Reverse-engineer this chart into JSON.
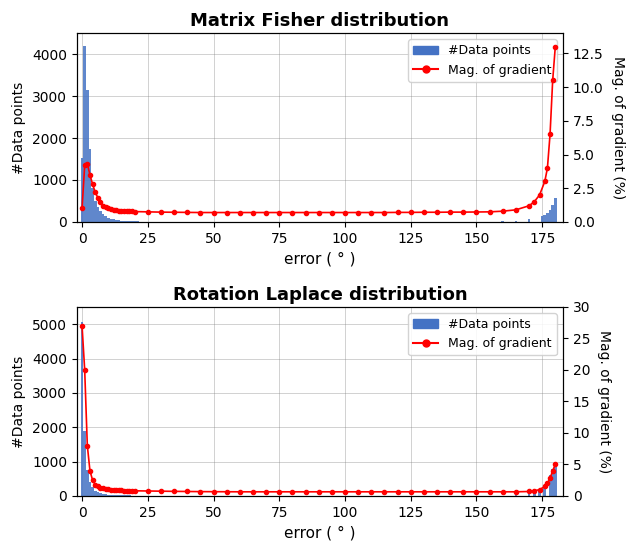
{
  "title1": "Matrix Fisher distribution",
  "title2": "Rotation Laplace distribution",
  "xlabel": "error ( ° )",
  "ylabel_left": "#Data points",
  "ylabel_right": "Mag. of gradient (%)",
  "bar_color": "#4472c4",
  "line_color": "#ff0000",
  "grid": true,
  "mf_bar_centers": [
    0,
    1,
    2,
    3,
    4,
    5,
    6,
    7,
    8,
    9,
    10,
    11,
    12,
    13,
    14,
    15,
    16,
    17,
    18,
    19,
    20,
    21,
    22,
    23,
    24,
    25,
    26,
    27,
    28,
    29,
    30,
    35,
    40,
    45,
    50,
    55,
    60,
    65,
    70,
    75,
    80,
    85,
    90,
    95,
    100,
    105,
    110,
    115,
    120,
    125,
    130,
    135,
    140,
    145,
    150,
    155,
    160,
    165,
    170,
    175,
    176,
    177,
    178,
    179,
    180
  ],
  "mf_bar_heights": [
    1520,
    4200,
    3150,
    1750,
    800,
    500,
    350,
    250,
    180,
    140,
    100,
    80,
    65,
    55,
    45,
    35,
    30,
    25,
    20,
    18,
    15,
    12,
    10,
    10,
    8,
    8,
    7,
    6,
    5,
    5,
    10,
    8,
    5,
    5,
    4,
    4,
    3,
    3,
    2,
    2,
    2,
    2,
    2,
    2,
    2,
    2,
    2,
    2,
    2,
    2,
    2,
    2,
    2,
    3,
    5,
    8,
    15,
    30,
    60,
    150,
    170,
    220,
    290,
    400,
    580
  ],
  "mf_grad_x": [
    0,
    1,
    2,
    3,
    4,
    5,
    6,
    7,
    8,
    9,
    10,
    11,
    12,
    13,
    14,
    15,
    16,
    17,
    18,
    19,
    20,
    25,
    30,
    35,
    40,
    45,
    50,
    55,
    60,
    65,
    70,
    75,
    80,
    85,
    90,
    95,
    100,
    105,
    110,
    115,
    120,
    125,
    130,
    135,
    140,
    145,
    150,
    155,
    160,
    165,
    170,
    172,
    174,
    176,
    177,
    178,
    179,
    180
  ],
  "mf_grad_y": [
    1.0,
    4.2,
    4.3,
    3.5,
    2.8,
    2.2,
    1.8,
    1.5,
    1.2,
    1.1,
    1.0,
    0.95,
    0.92,
    0.88,
    0.85,
    0.83,
    0.82,
    0.8,
    0.79,
    0.78,
    0.77,
    0.75,
    0.73,
    0.72,
    0.71,
    0.7,
    0.7,
    0.7,
    0.7,
    0.7,
    0.7,
    0.7,
    0.7,
    0.7,
    0.7,
    0.7,
    0.7,
    0.7,
    0.7,
    0.7,
    0.71,
    0.71,
    0.72,
    0.72,
    0.73,
    0.73,
    0.74,
    0.75,
    0.8,
    0.9,
    1.2,
    1.5,
    2.0,
    3.0,
    4.0,
    6.5,
    10.5,
    13.0
  ],
  "mf_grad_ylim": [
    0,
    14
  ],
  "mf_bar_ylim": [
    0,
    4500
  ],
  "rl_bar_centers": [
    0,
    1,
    2,
    3,
    4,
    5,
    6,
    7,
    8,
    9,
    10,
    11,
    12,
    13,
    14,
    15,
    16,
    17,
    18,
    19,
    20,
    21,
    22,
    23,
    24,
    25,
    26,
    27,
    28,
    29,
    30,
    35,
    40,
    45,
    50,
    55,
    60,
    65,
    70,
    75,
    80,
    85,
    90,
    95,
    100,
    105,
    110,
    115,
    120,
    125,
    130,
    135,
    140,
    145,
    150,
    155,
    160,
    165,
    170,
    172,
    174,
    176,
    178,
    179,
    180
  ],
  "rl_bar_heights": [
    5050,
    1900,
    750,
    400,
    250,
    150,
    100,
    80,
    60,
    50,
    40,
    35,
    30,
    25,
    20,
    18,
    15,
    13,
    12,
    10,
    9,
    8,
    7,
    6,
    6,
    5,
    5,
    5,
    4,
    4,
    4,
    3,
    3,
    3,
    2,
    2,
    2,
    2,
    2,
    2,
    2,
    2,
    2,
    2,
    2,
    2,
    2,
    2,
    2,
    2,
    2,
    2,
    2,
    2,
    3,
    5,
    8,
    20,
    80,
    120,
    200,
    330,
    620,
    790,
    900
  ],
  "rl_grad_x": [
    0,
    1,
    2,
    3,
    4,
    5,
    6,
    7,
    8,
    9,
    10,
    11,
    12,
    13,
    14,
    15,
    16,
    17,
    18,
    19,
    20,
    25,
    30,
    35,
    40,
    45,
    50,
    55,
    60,
    65,
    70,
    75,
    80,
    85,
    90,
    95,
    100,
    105,
    110,
    115,
    120,
    125,
    130,
    135,
    140,
    145,
    150,
    155,
    160,
    165,
    170,
    172,
    174,
    176,
    177,
    178,
    179,
    180
  ],
  "rl_grad_y": [
    27.0,
    20.0,
    8.0,
    4.0,
    2.5,
    1.8,
    1.5,
    1.3,
    1.2,
    1.1,
    1.05,
    1.0,
    0.95,
    0.9,
    0.88,
    0.86,
    0.85,
    0.84,
    0.83,
    0.82,
    0.81,
    0.78,
    0.75,
    0.72,
    0.7,
    0.68,
    0.67,
    0.66,
    0.65,
    0.65,
    0.65,
    0.65,
    0.65,
    0.65,
    0.65,
    0.65,
    0.65,
    0.65,
    0.65,
    0.65,
    0.65,
    0.65,
    0.65,
    0.65,
    0.65,
    0.65,
    0.65,
    0.65,
    0.65,
    0.65,
    0.7,
    0.8,
    1.0,
    1.5,
    2.0,
    2.8,
    4.0,
    5.0
  ],
  "rl_grad_ylim": [
    0,
    30
  ],
  "rl_bar_ylim": [
    0,
    5500
  ],
  "xticks": [
    0,
    25,
    50,
    75,
    100,
    125,
    150,
    175
  ],
  "figsize": [
    6.4,
    5.51
  ],
  "dpi": 100
}
